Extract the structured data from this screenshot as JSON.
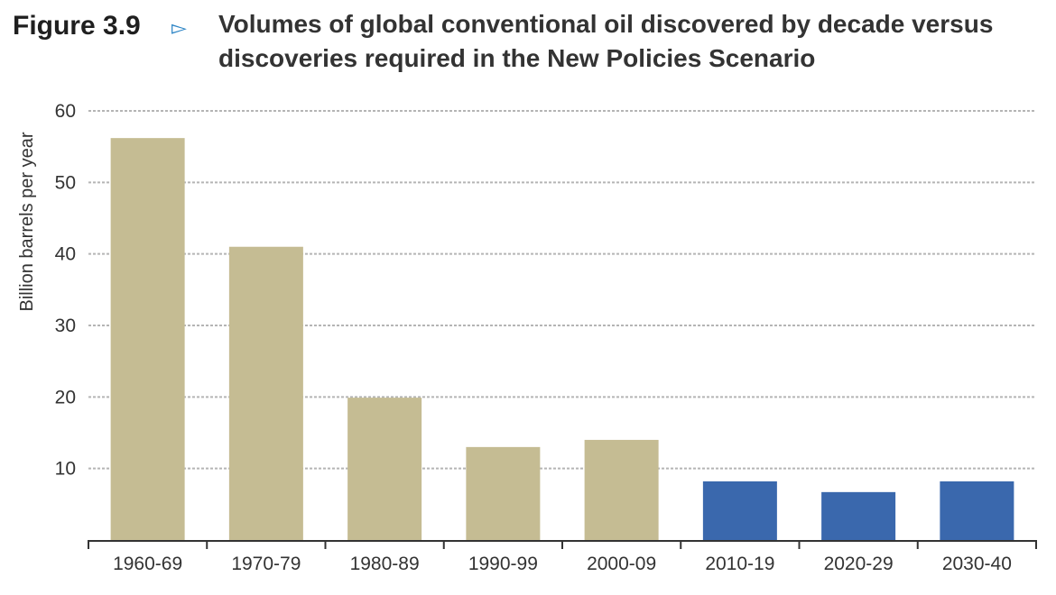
{
  "header": {
    "figure_label": "Figure 3.9",
    "figure_arrow_icon": "triangle-right-outline-icon",
    "title": "Volumes of global conventional oil discovered by decade versus discoveries required in the New Policies Scenario"
  },
  "chart_data": {
    "type": "bar",
    "title": "Volumes of global conventional oil discovered by decade versus discoveries required in the New Policies Scenario",
    "xlabel": "",
    "ylabel": "Billion barrels per year",
    "ylim": [
      0,
      60
    ],
    "yticks": [
      10,
      20,
      30,
      40,
      50,
      60
    ],
    "grid": true,
    "legend": "none",
    "categories": [
      "1960-69",
      "1970-79",
      "1980-89",
      "1990-99",
      "2000-09",
      "2010-19",
      "2020-29",
      "2030-40"
    ],
    "values": [
      56.2,
      41,
      19.9,
      13,
      14,
      8.2,
      6.7,
      8.2
    ],
    "bar_colors": [
      "#c5bc93",
      "#c5bc93",
      "#c5bc93",
      "#c5bc93",
      "#c5bc93",
      "#3a68ad",
      "#3a68ad",
      "#3a68ad"
    ],
    "grid_color": "#b5b5b5"
  }
}
